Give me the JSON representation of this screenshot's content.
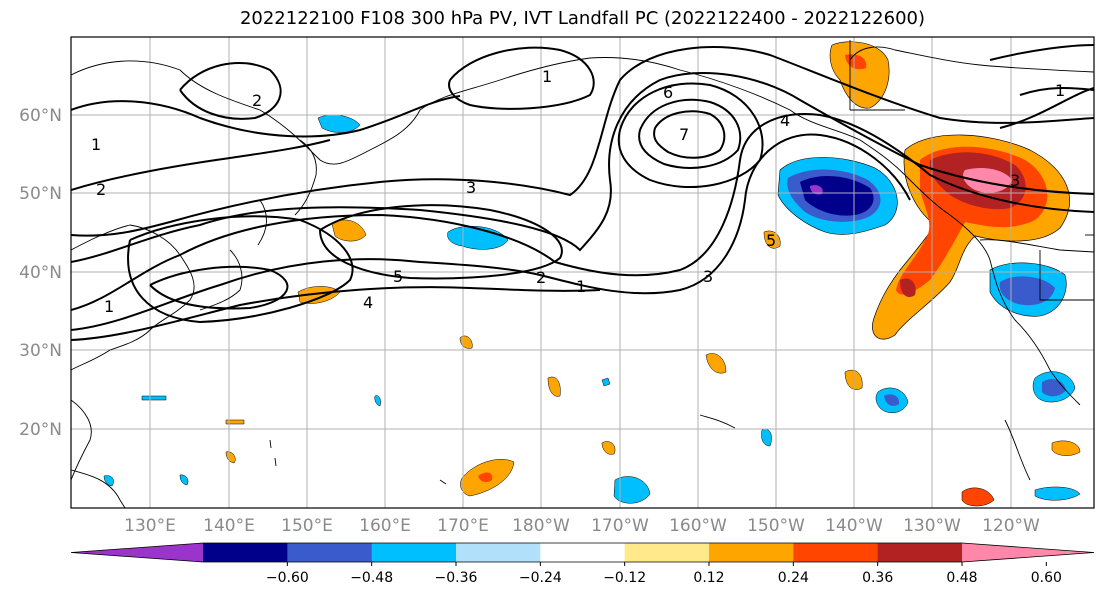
{
  "title": "2022122100 F108 300 hPa PV, IVT Landfall PC (2022122400 - 2022122600)",
  "lon_labels": [
    "130°E",
    "140°E",
    "150°E",
    "160°E",
    "170°E",
    "180°W",
    "170°W",
    "160°W",
    "150°W",
    "140°W",
    "130°W",
    "120°W"
  ],
  "lat_labels": [
    "60°N",
    "50°N",
    "40°N",
    "30°N",
    "20°N"
  ],
  "colorbar": {
    "tick_labels": [
      "−0.60",
      "−0.48",
      "−0.36",
      "−0.24",
      "−0.12",
      "0.12",
      "0.24",
      "0.36",
      "0.48",
      "0.60"
    ],
    "colors": [
      "#9b34cb",
      "#00008b",
      "#3a5bcc",
      "#00bfff",
      "#b0e0fa",
      "#ffffff",
      "#ffe98a",
      "#ffa500",
      "#ff4500",
      "#b22222",
      "#ff88aa"
    ]
  },
  "pv_contour_labels": [
    "1",
    "2",
    "3",
    "4",
    "5",
    "6",
    "7",
    "2",
    "1",
    "3",
    "4",
    "5",
    "1",
    "2",
    "1",
    "1",
    "3"
  ],
  "colors": {
    "grid": "#b0b0b0",
    "contour": "#000000",
    "land": "#000000"
  }
}
